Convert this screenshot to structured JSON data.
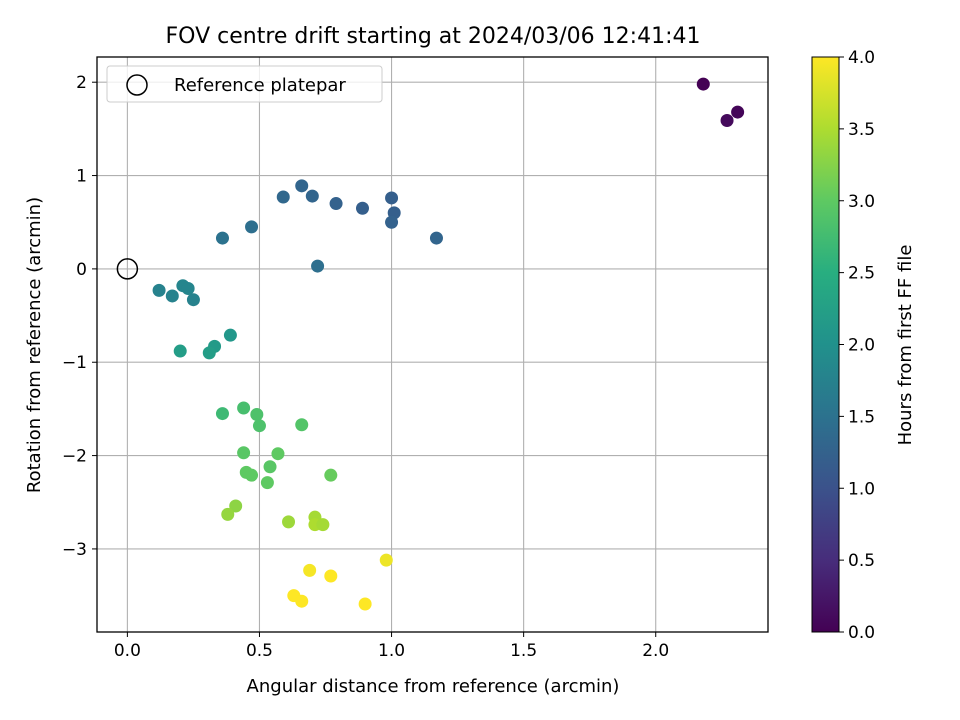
{
  "chart_data": {
    "type": "scatter",
    "title": "FOV centre drift starting at 2024/03/06 12:41:41",
    "xlabel": "Angular distance from reference (arcmin)",
    "ylabel": "Rotation from reference (arcmin)",
    "xlim": [
      -0.115,
      2.425
    ],
    "ylim": [
      -3.89,
      2.27
    ],
    "x_ticks": [
      0.0,
      0.5,
      1.0,
      1.5,
      2.0
    ],
    "x_tick_labels": [
      "0.0",
      "0.5",
      "1.0",
      "1.5",
      "2.0"
    ],
    "y_ticks": [
      -3,
      -2,
      -1,
      0,
      1,
      2
    ],
    "y_tick_labels": [
      "−3",
      "−2",
      "−1",
      "0",
      "1",
      "2"
    ],
    "grid": true,
    "legend": {
      "placement": "top-left",
      "entries": [
        "Reference platepar"
      ]
    },
    "reference_point": {
      "x": 0.0,
      "y": 0.0
    },
    "colorbar": {
      "label": "Hours from first FF file",
      "min": 0.0,
      "max": 4.0,
      "ticks": [
        0.0,
        0.5,
        1.0,
        1.5,
        2.0,
        2.5,
        3.0,
        3.5,
        4.0
      ],
      "tick_labels": [
        "0.0",
        "0.5",
        "1.0",
        "1.5",
        "2.0",
        "2.5",
        "3.0",
        "3.5",
        "4.0"
      ],
      "colormap": "viridis"
    },
    "points": [
      {
        "x": 2.18,
        "y": 1.98,
        "c": 0.0
      },
      {
        "x": 2.31,
        "y": 1.68,
        "c": 0.05
      },
      {
        "x": 2.27,
        "y": 1.59,
        "c": 0.1
      },
      {
        "x": 0.66,
        "y": 0.89,
        "c": 1.3
      },
      {
        "x": 0.59,
        "y": 0.77,
        "c": 1.35
      },
      {
        "x": 0.7,
        "y": 0.78,
        "c": 1.3
      },
      {
        "x": 0.79,
        "y": 0.7,
        "c": 1.25
      },
      {
        "x": 0.89,
        "y": 0.65,
        "c": 1.2
      },
      {
        "x": 1.0,
        "y": 0.76,
        "c": 1.2
      },
      {
        "x": 1.01,
        "y": 0.6,
        "c": 1.2
      },
      {
        "x": 1.0,
        "y": 0.5,
        "c": 1.25
      },
      {
        "x": 1.17,
        "y": 0.33,
        "c": 1.3
      },
      {
        "x": 0.72,
        "y": 0.03,
        "c": 1.45
      },
      {
        "x": 0.47,
        "y": 0.45,
        "c": 1.45
      },
      {
        "x": 0.36,
        "y": 0.33,
        "c": 1.5
      },
      {
        "x": 0.12,
        "y": -0.23,
        "c": 1.75
      },
      {
        "x": 0.17,
        "y": -0.29,
        "c": 1.75
      },
      {
        "x": 0.21,
        "y": -0.18,
        "c": 1.8
      },
      {
        "x": 0.23,
        "y": -0.21,
        "c": 1.8
      },
      {
        "x": 0.25,
        "y": -0.33,
        "c": 1.75
      },
      {
        "x": 0.39,
        "y": -0.71,
        "c": 2.1
      },
      {
        "x": 0.33,
        "y": -0.83,
        "c": 2.15
      },
      {
        "x": 0.31,
        "y": -0.9,
        "c": 2.2
      },
      {
        "x": 0.2,
        "y": -0.88,
        "c": 2.2
      },
      {
        "x": 0.36,
        "y": -1.55,
        "c": 2.7
      },
      {
        "x": 0.44,
        "y": -1.49,
        "c": 2.8
      },
      {
        "x": 0.49,
        "y": -1.56,
        "c": 2.85
      },
      {
        "x": 0.5,
        "y": -1.68,
        "c": 2.85
      },
      {
        "x": 0.66,
        "y": -1.67,
        "c": 2.9
      },
      {
        "x": 0.44,
        "y": -1.97,
        "c": 2.95
      },
      {
        "x": 0.57,
        "y": -1.98,
        "c": 3.0
      },
      {
        "x": 0.45,
        "y": -2.18,
        "c": 3.0
      },
      {
        "x": 0.47,
        "y": -2.21,
        "c": 3.0
      },
      {
        "x": 0.54,
        "y": -2.12,
        "c": 2.95
      },
      {
        "x": 0.53,
        "y": -2.29,
        "c": 3.0
      },
      {
        "x": 0.77,
        "y": -2.21,
        "c": 3.05
      },
      {
        "x": 0.41,
        "y": -2.54,
        "c": 3.3
      },
      {
        "x": 0.38,
        "y": -2.63,
        "c": 3.35
      },
      {
        "x": 0.61,
        "y": -2.71,
        "c": 3.4
      },
      {
        "x": 0.71,
        "y": -2.66,
        "c": 3.45
      },
      {
        "x": 0.71,
        "y": -2.74,
        "c": 3.5
      },
      {
        "x": 0.74,
        "y": -2.74,
        "c": 3.45
      },
      {
        "x": 0.98,
        "y": -3.12,
        "c": 3.9
      },
      {
        "x": 0.69,
        "y": -3.23,
        "c": 3.95
      },
      {
        "x": 0.77,
        "y": -3.29,
        "c": 4.0
      },
      {
        "x": 0.63,
        "y": -3.5,
        "c": 4.0
      },
      {
        "x": 0.66,
        "y": -3.56,
        "c": 4.0
      },
      {
        "x": 0.9,
        "y": -3.59,
        "c": 4.0
      }
    ]
  }
}
